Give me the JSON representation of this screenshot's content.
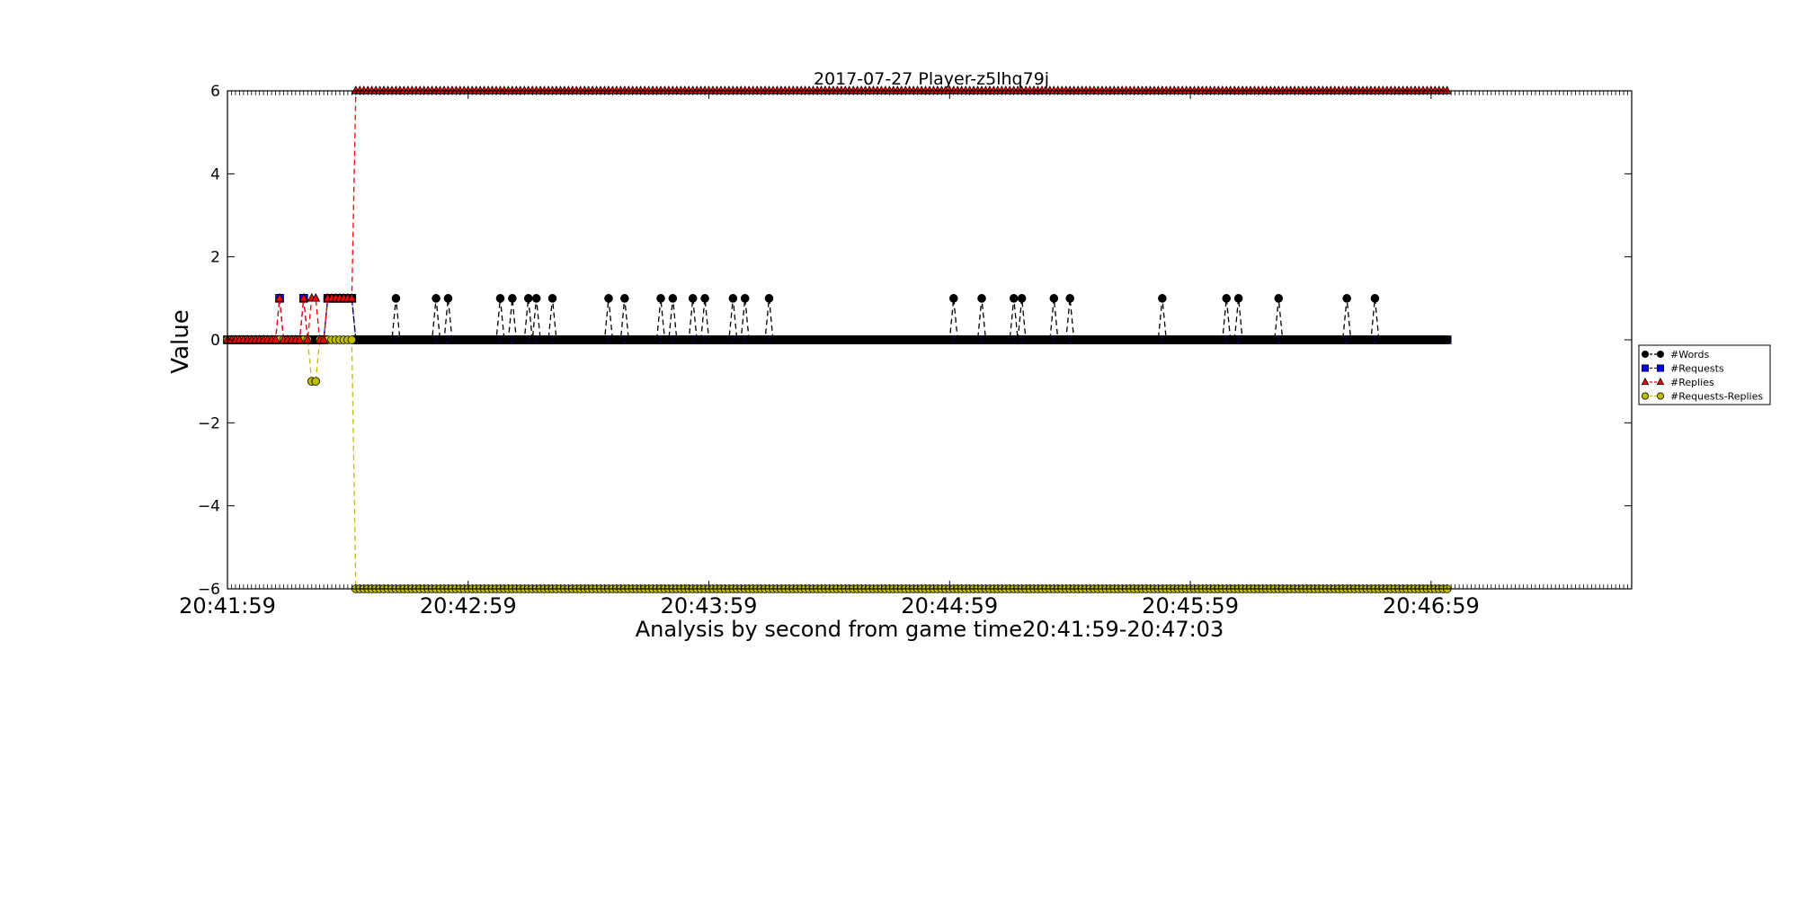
{
  "chart_data": {
    "type": "line",
    "title": "2017-07-27 Player-z5lhq79j",
    "xlabel": "Analysis by second from game time20:41:59-20:47:03",
    "ylabel": "Value",
    "x_start_time": "20:41:59",
    "x_end_time": "20:47:03",
    "x_unit": "seconds",
    "xlim": [
      0,
      350
    ],
    "ylim": [
      -6,
      6
    ],
    "x_ticks": [
      0,
      60,
      120,
      180,
      240,
      300
    ],
    "x_tick_labels": [
      "20:41:59",
      "20:42:59",
      "20:43:59",
      "20:44:59",
      "20:45:59",
      "20:46:59"
    ],
    "y_ticks": [
      -6,
      -4,
      -2,
      0,
      2,
      4,
      6
    ],
    "y_tick_labels": [
      "−6",
      "−4",
      "−2",
      "0",
      "2",
      "4",
      "6"
    ],
    "grid": false,
    "legend_position": "right",
    "series": [
      {
        "name": "#Words",
        "color": "#000000",
        "marker": "circle",
        "linestyle": "dashed",
        "x_range": [
          0,
          304
        ],
        "baseline": 0,
        "nonzero": [
          {
            "x": 25,
            "y": 1
          },
          {
            "x": 26,
            "y": 1
          },
          {
            "x": 27,
            "y": 1
          },
          {
            "x": 28,
            "y": 1
          },
          {
            "x": 29,
            "y": 1
          },
          {
            "x": 30,
            "y": 1
          },
          {
            "x": 31,
            "y": 1
          },
          {
            "x": 42,
            "y": 1
          },
          {
            "x": 52,
            "y": 1
          },
          {
            "x": 55,
            "y": 1
          },
          {
            "x": 68,
            "y": 1
          },
          {
            "x": 71,
            "y": 1
          },
          {
            "x": 75,
            "y": 1
          },
          {
            "x": 77,
            "y": 1
          },
          {
            "x": 81,
            "y": 1
          },
          {
            "x": 95,
            "y": 1
          },
          {
            "x": 99,
            "y": 1
          },
          {
            "x": 108,
            "y": 1
          },
          {
            "x": 111,
            "y": 1
          },
          {
            "x": 116,
            "y": 1
          },
          {
            "x": 119,
            "y": 1
          },
          {
            "x": 126,
            "y": 1
          },
          {
            "x": 129,
            "y": 1
          },
          {
            "x": 135,
            "y": 1
          },
          {
            "x": 181,
            "y": 1
          },
          {
            "x": 188,
            "y": 1
          },
          {
            "x": 196,
            "y": 1
          },
          {
            "x": 198,
            "y": 1
          },
          {
            "x": 206,
            "y": 1
          },
          {
            "x": 210,
            "y": 1
          },
          {
            "x": 233,
            "y": 1
          },
          {
            "x": 249,
            "y": 1
          },
          {
            "x": 252,
            "y": 1
          },
          {
            "x": 262,
            "y": 1
          },
          {
            "x": 279,
            "y": 1
          },
          {
            "x": 286,
            "y": 1
          }
        ]
      },
      {
        "name": "#Requests",
        "color": "#0000ff",
        "marker": "square",
        "linestyle": "dashed",
        "x_range": [
          0,
          304
        ],
        "baseline": 0,
        "nonzero": [
          {
            "x": 13,
            "y": 1
          },
          {
            "x": 19,
            "y": 1
          },
          {
            "x": 25,
            "y": 1
          },
          {
            "x": 26,
            "y": 1
          },
          {
            "x": 27,
            "y": 1
          },
          {
            "x": 28,
            "y": 1
          },
          {
            "x": 29,
            "y": 1
          },
          {
            "x": 30,
            "y": 1
          },
          {
            "x": 31,
            "y": 1
          }
        ]
      },
      {
        "name": "#Replies",
        "color": "#ff0000",
        "marker": "triangle",
        "linestyle": "dashed",
        "x_range": [
          0,
          304
        ],
        "baseline": 0,
        "nonzero": [
          {
            "x": 13,
            "y": 1
          },
          {
            "x": 19,
            "y": 1
          },
          {
            "x": 21,
            "y": 1
          },
          {
            "x": 22,
            "y": 1
          },
          {
            "x": 25,
            "y": 1
          },
          {
            "x": 26,
            "y": 1
          },
          {
            "x": 27,
            "y": 1
          },
          {
            "x": 28,
            "y": 1
          },
          {
            "x": 29,
            "y": 1
          },
          {
            "x": 30,
            "y": 1
          },
          {
            "x": 31,
            "y": 1
          }
        ],
        "level_after": {
          "x_from": 32,
          "y": 6
        }
      },
      {
        "name": "#Requests-Replies",
        "color": "#bfbf00",
        "marker": "circle",
        "linestyle": "dashed",
        "x_range": [
          0,
          304
        ],
        "baseline": 0,
        "nonzero": [
          {
            "x": 21,
            "y": -1
          },
          {
            "x": 22,
            "y": -1
          }
        ],
        "level_after": {
          "x_from": 32,
          "y": -6
        }
      }
    ]
  }
}
